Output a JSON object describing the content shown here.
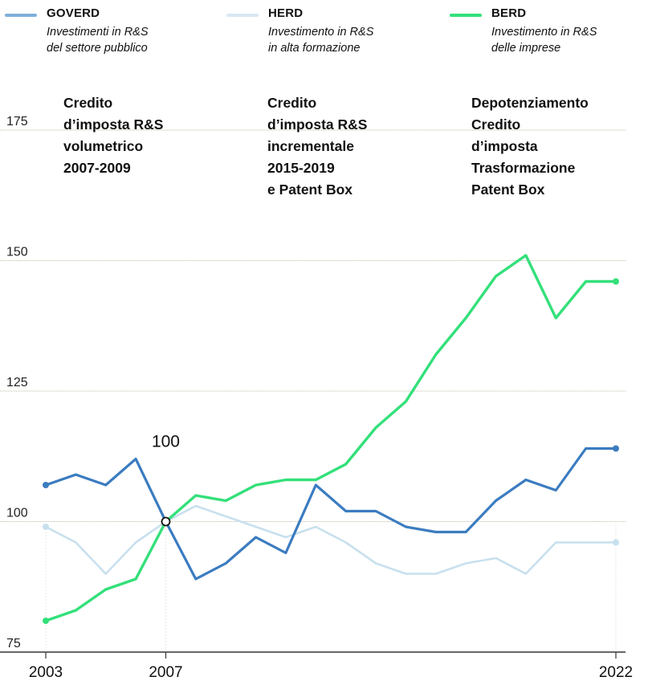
{
  "legend": [
    {
      "key": "GOVERD",
      "line1": "Investimenti in R&S",
      "line2": "del settore pubblico",
      "color": "#3b7cc0"
    },
    {
      "key": "HERD",
      "line1": "Investimento in R&S",
      "line2": "in alta formazione",
      "color": "#c8e0ee"
    },
    {
      "key": "BERD",
      "line1": "Investimento in R&S",
      "line2": "delle imprese",
      "color": "#33e07a"
    }
  ],
  "annotations": [
    {
      "lines": [
        "Credito",
        "d’imposta R&S",
        "volumetrico",
        "2007-2009"
      ]
    },
    {
      "lines": [
        "Credito",
        "d’imposta R&S",
        "incrementale",
        "2015-2019",
        "e Patent Box"
      ]
    },
    {
      "lines": [
        "Depotenziamento",
        "Credito",
        "d’imposta",
        "Trasformazione",
        "Patent Box"
      ]
    }
  ],
  "chart_data": {
    "type": "line",
    "x": [
      2003,
      2004,
      2005,
      2006,
      2007,
      2008,
      2009,
      2010,
      2011,
      2012,
      2013,
      2014,
      2015,
      2016,
      2017,
      2018,
      2019,
      2020,
      2021,
      2022
    ],
    "series": [
      {
        "name": "GOVERD",
        "color": "#3b7cc0",
        "values": [
          107,
          109,
          107,
          112,
          100,
          89,
          92,
          97,
          94,
          107,
          102,
          102,
          99,
          98,
          98,
          104,
          108,
          106,
          114,
          114
        ]
      },
      {
        "name": "HERD",
        "color": "#c8e0ee",
        "values": [
          99,
          96,
          90,
          96,
          100,
          103,
          101,
          99,
          97,
          99,
          96,
          92,
          90,
          90,
          92,
          93,
          90,
          96,
          96,
          96
        ]
      },
      {
        "name": "BERD",
        "color": "#33e07a",
        "values": [
          81,
          83,
          87,
          89,
          100,
          105,
          104,
          107,
          108,
          108,
          111,
          118,
          123,
          132,
          139,
          147,
          151,
          139,
          146,
          146
        ]
      }
    ],
    "x_labels": [
      "2003",
      "2007",
      "2022"
    ],
    "y_ticks": [
      75,
      100,
      125,
      150,
      175
    ],
    "ylim": [
      75,
      175
    ],
    "point_label": "100",
    "point_label_year": 2007,
    "grid": true
  }
}
